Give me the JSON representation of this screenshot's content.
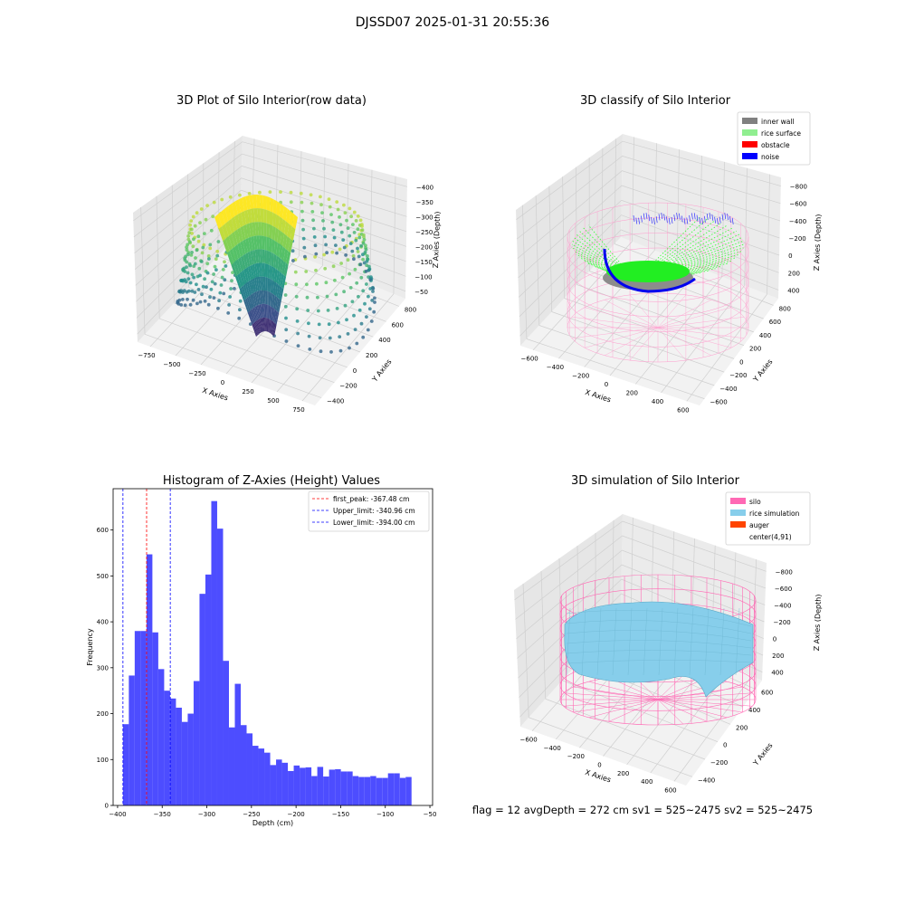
{
  "figure": {
    "suptitle": "DJSSD07 2025-01-31 20:55:36"
  },
  "panel1": {
    "title": "3D Plot of Silo Interior(row data)",
    "xlabel": "X Axies",
    "ylabel": "Y Axies",
    "zlabel": "Z Axies (Depth)",
    "xticks": [
      "−750",
      "−500",
      "−250",
      "0",
      "250",
      "500",
      "750"
    ],
    "yticks": [
      "−400",
      "−200",
      "0",
      "200",
      "400",
      "600",
      "800"
    ],
    "zticks": [
      "−50",
      "−100",
      "−150",
      "−200",
      "−250",
      "−300",
      "−350",
      "−400"
    ],
    "colormap": "viridis"
  },
  "panel2": {
    "title": "3D classify of Silo Interior",
    "xlabel": "X Axies",
    "ylabel": "Y Axies",
    "zlabel": "Z Axies (Depth)",
    "xticks": [
      "−600",
      "−400",
      "−200",
      "0",
      "200",
      "400",
      "600"
    ],
    "yticks": [
      "−600",
      "−400",
      "−200",
      "0",
      "200",
      "400",
      "600",
      "800"
    ],
    "zticks": [
      "400",
      "200",
      "0",
      "−200",
      "−400",
      "−600",
      "−800"
    ],
    "legend": [
      {
        "label": "inner wall",
        "color": "#808080"
      },
      {
        "label": "rice surface",
        "color": "#90ee90"
      },
      {
        "label": "obstacle",
        "color": "#ff0000"
      },
      {
        "label": "noise",
        "color": "#0000ff"
      }
    ]
  },
  "panel4": {
    "title": "3D simulation of Silo Interior",
    "xlabel": "X Axies",
    "ylabel": "Y Axies",
    "zlabel": "Z Axies (Depth)",
    "xticks": [
      "−600",
      "−400",
      "−200",
      "0",
      "200",
      "400",
      "600"
    ],
    "yticks": [
      "−400",
      "−200",
      "0",
      "200",
      "400",
      "600"
    ],
    "zticks": [
      "400",
      "200",
      "0",
      "−200",
      "−400",
      "−600",
      "−800"
    ],
    "legend": [
      {
        "label": "silo",
        "color": "#ff69b4"
      },
      {
        "label": "rice simulation",
        "color": "#87ceeb"
      },
      {
        "label": "auger",
        "color": "#ff4500"
      },
      {
        "label": "center(4,91)",
        "color": "#ffffff"
      }
    ],
    "status": "flag = 12   avgDepth = 272 cm  sv1 = 525~2475  sv2 = 525~2475"
  },
  "chart_data": [
    {
      "type": "histogram",
      "title": "Histogram of Z-Axies (Height) Values",
      "xlabel": "Depth (cm)",
      "ylabel": "Frequency",
      "xlim": [
        -405,
        -47
      ],
      "ylim": [
        0,
        690
      ],
      "xticks": [
        -400,
        -350,
        -300,
        -250,
        -200,
        -150,
        -100,
        -50
      ],
      "xtick_labels": [
        "−400",
        "−350",
        "−300",
        "−250",
        "−200",
        "−150",
        "−100",
        "−50"
      ],
      "yticks": [
        0,
        100,
        200,
        300,
        400,
        500,
        600
      ],
      "bar_color": "#4d4dff",
      "bin_start": -394.0,
      "bin_width": 6.6,
      "values": [
        177,
        283,
        380,
        380,
        547,
        377,
        297,
        250,
        233,
        213,
        182,
        200,
        271,
        461,
        503,
        663,
        603,
        315,
        170,
        265,
        175,
        157,
        130,
        124,
        115,
        88,
        100,
        93,
        75,
        87,
        82,
        83,
        64,
        84,
        63,
        78,
        79,
        74,
        74,
        64,
        62,
        62,
        64,
        60,
        60,
        70,
        70,
        60,
        62
      ],
      "vlines": [
        {
          "x": -367.48,
          "color": "#ff0000",
          "label": "first_peak: -367.48 cm"
        },
        {
          "x": -340.96,
          "color": "#0000ff",
          "label": "Upper_limit: -340.96 cm"
        },
        {
          "x": -394.0,
          "color": "#0000ff",
          "label": "Lower_limit: -394.00 cm"
        }
      ],
      "legend_position": "top-right"
    }
  ]
}
